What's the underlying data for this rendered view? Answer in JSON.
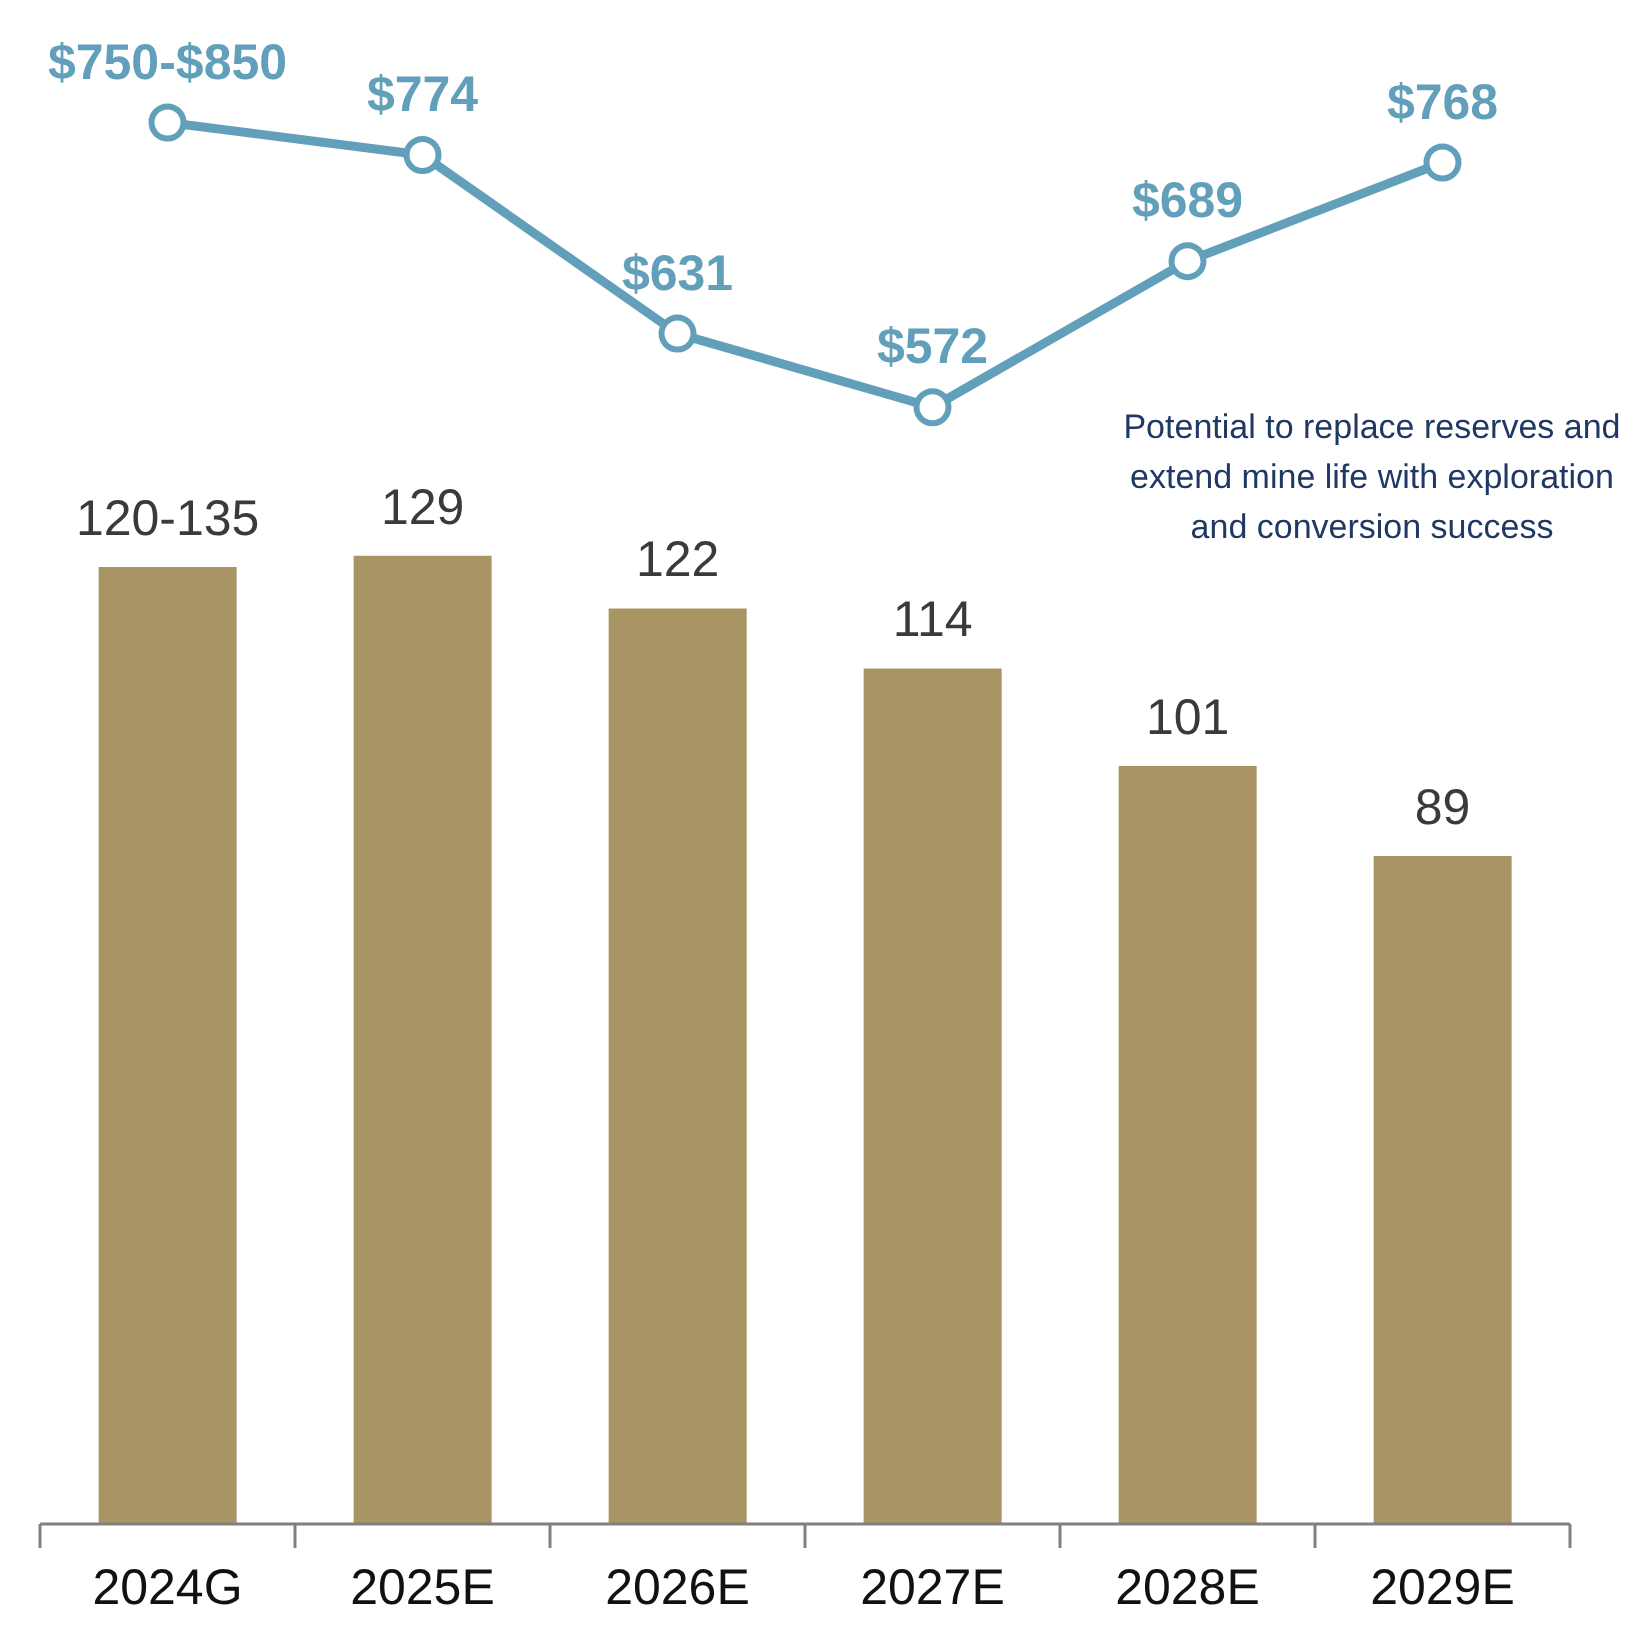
{
  "chart_data": [
    {
      "type": "line",
      "categories": [
        null,
        null,
        null,
        null,
        null,
        null
      ],
      "tick_labels": false,
      "series": [
        {
          "color": "#629fba",
          "values": [
            800,
            774,
            631,
            572,
            689,
            768
          ],
          "value_labels": [
            "$750-$850",
            "$774",
            "$631",
            "$572",
            "$689",
            "$768"
          ],
          "marker": "circle"
        }
      ]
    },
    {
      "type": "bar",
      "categories": [
        "2024G",
        "2025E",
        "2026E",
        "2027E",
        "2028E",
        "2029E"
      ],
      "tick_labels": "x",
      "series": [
        {
          "color": "#a99563",
          "values": [
            127.5,
            129,
            122,
            114,
            101,
            89
          ],
          "value_labels": [
            "120-135",
            "129",
            "122",
            "114",
            "101",
            "89"
          ]
        }
      ],
      "annotations": [
        "Potential to replace reserves and extend mine life with exploration and conversion success"
      ]
    }
  ]
}
